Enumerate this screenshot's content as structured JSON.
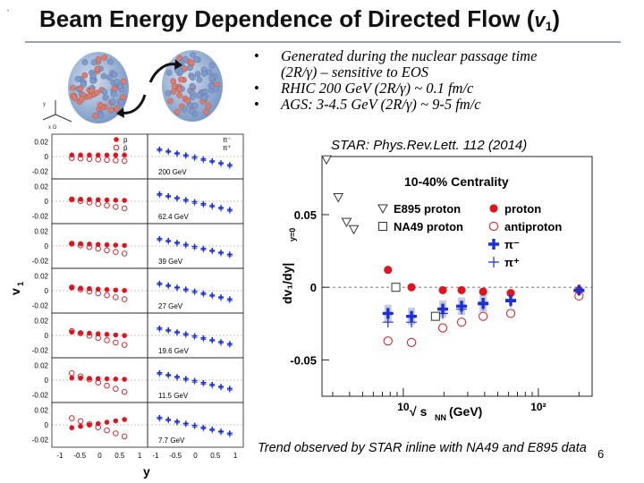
{
  "slide": {
    "title_main": "Beam Energy Dependence of Directed Flow  (",
    "title_v": "v",
    "title_sub": "1",
    "title_close": ")",
    "corner_mark": "˚",
    "page_number": "6",
    "bullets": [
      {
        "line1": "Generated during the nuclear passage  time",
        "line2": "(2R/γ) – sensitive to EOS"
      },
      {
        "line1": " RHIC 200 GeV (2R/γ) ~ 0.1 fm/c",
        "line2": ""
      },
      {
        "line1": "AGS:  3-4.5 GeV (2R/γ) ~ 9-5 fm/c",
        "line2": ""
      }
    ],
    "bullet_glyph": "•",
    "reference": "STAR: Phys.Rev.Lett. 112 (2014)",
    "trend_note": "Trend observed by STAR inline with NA49 and E895 data"
  },
  "left_figure": {
    "y_label": "v",
    "y_label_sub": "1",
    "x_label": "y",
    "x_ticks": [
      "-1",
      "-0.5",
      "0",
      "0.5",
      "1"
    ],
    "y_ticks": [
      "0.02",
      "0",
      "-0.02"
    ],
    "energies": [
      "200 GeV",
      "62.4 GeV",
      "39 GeV",
      "27 GeV",
      "19.6 GeV",
      "11.5 GeV",
      "7.7 GeV"
    ],
    "legend_left": [
      "p",
      "p̄"
    ],
    "legend_right": [
      "π⁻",
      "π⁺"
    ],
    "colors": {
      "proton": "#e0141e",
      "antiproton": "#e0141e",
      "pion": "#1b2fd6"
    }
  },
  "right_figure": {
    "legend_title": "10-40% Centrality",
    "legend": [
      {
        "label": "E895 proton",
        "marker": "triangle-open"
      },
      {
        "label": "proton",
        "marker": "circle-filled"
      },
      {
        "label": "NA49 proton",
        "marker": "square-open"
      },
      {
        "label": "antiproton",
        "marker": "circle-open"
      },
      {
        "label": "π⁻",
        "marker": "cross-filled"
      },
      {
        "label": "π⁺",
        "marker": "cross-open"
      }
    ],
    "y_label": "dv₁/dy|",
    "y_label_sub": "y=0",
    "y_ticks": [
      "0.05",
      "0",
      "-0.05"
    ],
    "x_ticks": [
      "10",
      "10²"
    ],
    "x_label": "√ s",
    "x_label_sub": "NN",
    "x_label_unit": " (GeV)"
  },
  "chart_data": {
    "type": "scatter",
    "title": "10-40% Centrality",
    "xlabel": "√sNN (GeV)",
    "ylabel": "dv1/dy|y=0",
    "xscale": "log",
    "xlim": [
      2.5,
      250
    ],
    "ylim": [
      -0.075,
      0.09
    ],
    "grid": false,
    "legend_position": "top",
    "series": [
      {
        "name": "proton",
        "x": [
          7.7,
          11.5,
          19.6,
          27,
          39,
          62.4,
          200
        ],
        "y": [
          0.012,
          0.0,
          -0.002,
          -0.002,
          -0.003,
          -0.004,
          -0.002
        ]
      },
      {
        "name": "antiproton",
        "x": [
          7.7,
          11.5,
          19.6,
          27,
          39,
          62.4,
          200
        ],
        "y": [
          -0.037,
          -0.038,
          -0.028,
          -0.024,
          -0.02,
          -0.018,
          -0.006
        ]
      },
      {
        "name": "π⁻",
        "x": [
          7.7,
          11.5,
          19.6,
          27,
          39,
          62.4,
          200
        ],
        "y": [
          -0.018,
          -0.02,
          -0.015,
          -0.013,
          -0.011,
          -0.009,
          -0.002
        ]
      },
      {
        "name": "π⁺",
        "x": [
          7.7,
          11.5,
          19.6,
          27,
          39,
          62.4,
          200
        ],
        "y": [
          -0.024,
          -0.024,
          -0.018,
          -0.015,
          -0.012,
          -0.01,
          -0.003
        ]
      },
      {
        "name": "E895 proton",
        "x": [
          2.7,
          3.3,
          3.8,
          4.3
        ],
        "y": [
          0.088,
          0.062,
          0.045,
          0.04
        ]
      },
      {
        "name": "NA49 proton",
        "x": [
          8.8,
          17.3
        ],
        "y": [
          0.0,
          -0.02
        ]
      }
    ]
  }
}
